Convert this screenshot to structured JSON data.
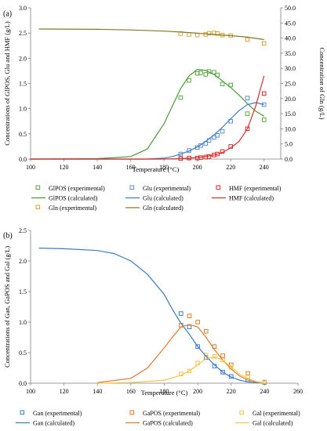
{
  "chart_data": [
    {
      "panel_label": "(a)",
      "type": "line",
      "xlabel": "Temperature (°C)",
      "ylabel": "Concentrations of GlPOS, Glu and HMF (g/L)",
      "y2label": "Concentration of Gln (g/L)",
      "xlim": [
        100,
        250
      ],
      "ylim": [
        0,
        3
      ],
      "y2lim": [
        0,
        50
      ],
      "xticks": [
        "100",
        "120",
        "140",
        "160",
        "180",
        "200",
        "220",
        "240"
      ],
      "yticks": [
        "0.0",
        "0.5",
        "1.0",
        "1.5",
        "2.0",
        "2.5",
        "3.0"
      ],
      "y2ticks": [
        "0.0",
        "5.0",
        "10.0",
        "15.0",
        "20.0",
        "25.0",
        "30.0",
        "35.0",
        "40.0",
        "45.0",
        "50.0"
      ],
      "grid": false,
      "legend_position": "bottom",
      "series": [
        {
          "name": "GlPOS (experimental)",
          "kind": "points",
          "axis": "left",
          "color": "#5aaa45",
          "x": [
            190,
            195,
            200,
            202,
            205,
            207,
            210,
            212,
            215,
            220,
            230,
            240
          ],
          "y": [
            1.22,
            1.56,
            1.7,
            1.71,
            1.68,
            1.74,
            1.72,
            1.67,
            1.49,
            1.47,
            0.9,
            0.78
          ]
        },
        {
          "name": "Glu (experimental)",
          "kind": "points",
          "axis": "left",
          "color": "#5b8fd0",
          "x": [
            190,
            195,
            200,
            202,
            205,
            207,
            210,
            212,
            215,
            220,
            230,
            240
          ],
          "y": [
            0.1,
            0.17,
            0.23,
            0.27,
            0.31,
            0.37,
            0.43,
            0.47,
            0.55,
            0.75,
            1.21,
            1.08
          ]
        },
        {
          "name": "HMF (experimental)",
          "kind": "points",
          "axis": "left",
          "color": "#d62b2b",
          "x": [
            190,
            195,
            200,
            202,
            205,
            207,
            210,
            212,
            215,
            220,
            230,
            240
          ],
          "y": [
            0.01,
            0.02,
            0.02,
            0.03,
            0.04,
            0.05,
            0.08,
            0.1,
            0.15,
            0.25,
            0.6,
            1.3
          ]
        },
        {
          "name": "GlPOS (calculated)",
          "kind": "line",
          "axis": "left",
          "color": "#4c9a3a",
          "x": [
            100,
            140,
            160,
            170,
            180,
            185,
            190,
            195,
            200,
            205,
            210,
            215,
            220,
            225,
            230,
            235,
            240
          ],
          "y": [
            0,
            0.01,
            0.05,
            0.2,
            0.7,
            1.05,
            1.4,
            1.65,
            1.78,
            1.76,
            1.68,
            1.55,
            1.42,
            1.27,
            1.1,
            0.95,
            0.85
          ]
        },
        {
          "name": "Glu (calculated)",
          "kind": "line",
          "axis": "left",
          "color": "#3a7cc8",
          "x": [
            100,
            170,
            180,
            185,
            190,
            195,
            200,
            205,
            210,
            215,
            220,
            225,
            230,
            235,
            240
          ],
          "y": [
            0,
            0,
            0.02,
            0.05,
            0.1,
            0.16,
            0.24,
            0.35,
            0.48,
            0.63,
            0.8,
            0.96,
            1.08,
            1.12,
            1.08
          ]
        },
        {
          "name": "HMF (calculated)",
          "kind": "line",
          "axis": "left",
          "color": "#d62b2b",
          "x": [
            100,
            180,
            190,
            200,
            205,
            210,
            215,
            220,
            225,
            230,
            235,
            240
          ],
          "y": [
            0,
            0,
            0.01,
            0.03,
            0.05,
            0.08,
            0.13,
            0.22,
            0.35,
            0.6,
            1.05,
            1.65
          ]
        },
        {
          "name": "Gln (experimental)",
          "kind": "points",
          "axis": "right",
          "color": "#d3a43a",
          "x": [
            190,
            195,
            200,
            205,
            207,
            210,
            212,
            215,
            220,
            230,
            240
          ],
          "y": [
            41.5,
            41.2,
            41.0,
            41.2,
            41.6,
            41.7,
            41.5,
            41.0,
            40.8,
            39.5,
            38.2
          ]
        },
        {
          "name": "Gln (calculated)",
          "kind": "line",
          "axis": "right",
          "color": "#8a7426",
          "x": [
            105,
            140,
            160,
            180,
            190,
            200,
            210,
            220,
            230,
            240
          ],
          "y": [
            43.0,
            42.9,
            42.7,
            42.3,
            42.0,
            41.6,
            41.2,
            40.8,
            40.3,
            39.5
          ]
        }
      ]
    },
    {
      "panel_label": "(b)",
      "type": "line",
      "xlabel": "Temperature (°C)",
      "ylabel": "Concentrations of Gan, GaPOS and Gal (g/L)",
      "xlim": [
        100,
        260
      ],
      "ylim": [
        0,
        2.5
      ],
      "xticks": [
        "100",
        "120",
        "140",
        "160",
        "180",
        "200",
        "220",
        "240",
        "260"
      ],
      "yticks": [
        "0.0",
        "0.5",
        "1.0",
        "1.5",
        "2.0",
        "2.5"
      ],
      "grid": false,
      "legend_position": "bottom",
      "series": [
        {
          "name": "Gan (experimental)",
          "kind": "points",
          "color": "#3a7cc8",
          "x": [
            190,
            195,
            200,
            205,
            210,
            215,
            220,
            230,
            240
          ],
          "y": [
            1.14,
            0.92,
            0.6,
            0.42,
            0.28,
            0.18,
            0.11,
            0.05,
            0.01
          ]
        },
        {
          "name": "GaPOS (experimental)",
          "kind": "points",
          "color": "#e07a2e",
          "x": [
            190,
            195,
            200,
            205,
            210,
            215,
            220,
            230,
            240
          ],
          "y": [
            0.95,
            1.1,
            1.0,
            0.85,
            0.6,
            0.45,
            0.3,
            0.16,
            0.02
          ]
        },
        {
          "name": "Gal (experimental)",
          "kind": "points",
          "color": "#f2c54a",
          "x": [
            190,
            195,
            200,
            205,
            210,
            215,
            220,
            230,
            240
          ],
          "y": [
            0.15,
            0.2,
            0.33,
            0.46,
            0.44,
            0.38,
            0.26,
            0.11,
            0.02
          ]
        },
        {
          "name": "Gan (calculated)",
          "kind": "line",
          "color": "#3a7cc8",
          "x": [
            105,
            120,
            140,
            150,
            160,
            170,
            180,
            185,
            190,
            195,
            200,
            205,
            210,
            215,
            220,
            225,
            230,
            235,
            240
          ],
          "y": [
            2.21,
            2.2,
            2.17,
            2.12,
            2.0,
            1.78,
            1.45,
            1.2,
            0.98,
            0.8,
            0.6,
            0.44,
            0.3,
            0.18,
            0.1,
            0.05,
            0.02,
            0.01,
            0
          ]
        },
        {
          "name": "GaPOS (calculated)",
          "kind": "line",
          "color": "#e07a2e",
          "x": [
            140,
            160,
            170,
            180,
            185,
            190,
            195,
            200,
            205,
            210,
            215,
            220,
            225,
            230,
            235,
            240
          ],
          "y": [
            0.01,
            0.08,
            0.25,
            0.58,
            0.76,
            0.92,
            0.96,
            0.92,
            0.75,
            0.55,
            0.38,
            0.23,
            0.12,
            0.05,
            0.02,
            0
          ]
        },
        {
          "name": "Gal (calculated)",
          "kind": "line",
          "color": "#f2c54a",
          "x": [
            140,
            160,
            180,
            190,
            195,
            200,
            205,
            210,
            215,
            220,
            225,
            230,
            235,
            240
          ],
          "y": [
            0,
            0.01,
            0.05,
            0.13,
            0.2,
            0.3,
            0.4,
            0.43,
            0.38,
            0.26,
            0.15,
            0.07,
            0.03,
            0
          ]
        }
      ]
    }
  ]
}
